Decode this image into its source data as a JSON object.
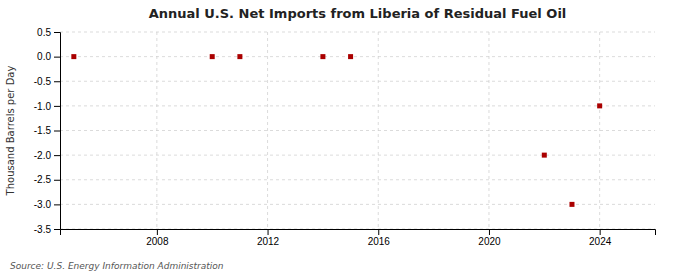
{
  "chart_data": {
    "type": "scatter",
    "title": "Annual U.S. Net Imports from Liberia of Residual Fuel Oil",
    "ylabel": "Thousand Barrels per Day",
    "annotations": [
      "Source: U.S. Energy Information Administration"
    ],
    "x": [
      2005,
      2010,
      2011,
      2014,
      2015,
      2022,
      2023,
      2024
    ],
    "values": [
      0.0,
      0.0,
      0.0,
      0.0,
      0.0,
      -2.0,
      -3.0,
      -1.0
    ],
    "color": "#aa0000",
    "marker": "square",
    "xlim": [
      2004.5,
      2026.0
    ],
    "ylim": [
      -3.5,
      0.5
    ],
    "xticks": [
      2008,
      2012,
      2016,
      2020,
      2024
    ],
    "yticks": [
      0.5,
      {
        "value": 0,
        "label": "0.0"
      },
      -0.5,
      {
        "value": -1,
        "label": "-1.0"
      },
      -1.5,
      {
        "value": -2,
        "label": "-2.0"
      },
      -2.5,
      {
        "value": -3,
        "label": "-3.0"
      },
      -3.5
    ],
    "grid": true
  }
}
